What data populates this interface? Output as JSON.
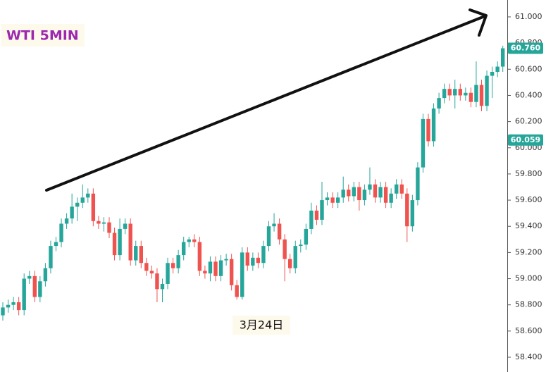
{
  "chart_data": {
    "type": "candlestick",
    "title": "WTI 5MIN",
    "annotation": "3月24日",
    "up_color": "#26a69a",
    "down_color": "#ef5350",
    "ylim": [
      58.287,
      61.129
    ],
    "yticks": [
      {
        "value": 58.4,
        "label": "58.400"
      },
      {
        "value": 58.6,
        "label": "58.600"
      },
      {
        "value": 58.8,
        "label": "58.800"
      },
      {
        "value": 59.0,
        "label": "59.000"
      },
      {
        "value": 59.2,
        "label": "59.200"
      },
      {
        "value": 59.4,
        "label": "59.400"
      },
      {
        "value": 59.6,
        "label": "59.600"
      },
      {
        "value": 59.8,
        "label": "59.800"
      },
      {
        "value": 60.0,
        "label": "60.000"
      },
      {
        "value": 60.2,
        "label": "60.200"
      },
      {
        "value": 60.4,
        "label": "60.400"
      },
      {
        "value": 60.6,
        "label": "60.600"
      },
      {
        "value": 60.8,
        "label": "60.800"
      },
      {
        "value": 61.0,
        "label": "61.000"
      }
    ],
    "price_labels": [
      {
        "value": 60.76,
        "label": "60.760",
        "color": "#26a69a"
      },
      {
        "value": 60.059,
        "label": "60.059",
        "color": "#26a69a"
      }
    ],
    "ohlc": [
      [
        58.72,
        58.82,
        58.68,
        58.78
      ],
      [
        58.78,
        58.84,
        58.74,
        58.8
      ],
      [
        58.8,
        58.86,
        58.76,
        58.82
      ],
      [
        58.82,
        58.86,
        58.72,
        58.76
      ],
      [
        58.76,
        59.04,
        58.72,
        59.0
      ],
      [
        59.0,
        59.06,
        58.96,
        59.02
      ],
      [
        59.02,
        59.06,
        58.82,
        58.86
      ],
      [
        58.86,
        59.02,
        58.82,
        58.98
      ],
      [
        58.98,
        59.12,
        58.94,
        59.08
      ],
      [
        59.08,
        59.29,
        59.04,
        59.25
      ],
      [
        59.25,
        59.32,
        59.21,
        59.28
      ],
      [
        59.28,
        59.46,
        59.24,
        59.42
      ],
      [
        59.42,
        59.5,
        59.38,
        59.46
      ],
      [
        59.46,
        59.65,
        59.42,
        59.55
      ],
      [
        59.55,
        59.62,
        59.44,
        59.58
      ],
      [
        59.58,
        59.72,
        59.54,
        59.62
      ],
      [
        59.62,
        59.69,
        59.58,
        59.65
      ],
      [
        59.65,
        59.69,
        59.4,
        59.44
      ],
      [
        59.44,
        59.48,
        59.38,
        59.42
      ],
      [
        59.42,
        59.47,
        59.36,
        59.43
      ],
      [
        59.43,
        59.47,
        59.31,
        59.35
      ],
      [
        59.35,
        59.39,
        59.14,
        59.18
      ],
      [
        59.18,
        59.46,
        59.14,
        59.38
      ],
      [
        59.38,
        59.46,
        59.34,
        59.42
      ],
      [
        59.42,
        59.46,
        59.1,
        59.14
      ],
      [
        59.14,
        59.29,
        59.1,
        59.25
      ],
      [
        59.25,
        59.29,
        59.08,
        59.12
      ],
      [
        59.12,
        59.16,
        59.02,
        59.06
      ],
      [
        59.06,
        59.1,
        59.0,
        59.04
      ],
      [
        59.04,
        59.08,
        58.82,
        58.92
      ],
      [
        58.92,
        59.0,
        58.82,
        58.96
      ],
      [
        58.96,
        59.16,
        58.92,
        59.12
      ],
      [
        59.12,
        59.16,
        59.04,
        59.08
      ],
      [
        59.08,
        59.22,
        59.04,
        59.18
      ],
      [
        59.18,
        59.32,
        59.14,
        59.28
      ],
      [
        59.28,
        59.32,
        59.24,
        59.3
      ],
      [
        59.3,
        59.34,
        59.24,
        59.28
      ],
      [
        59.28,
        59.32,
        59.02,
        59.06
      ],
      [
        59.06,
        59.1,
        59.0,
        59.04
      ],
      [
        59.04,
        59.17,
        58.98,
        59.13
      ],
      [
        59.13,
        59.17,
        58.98,
        59.02
      ],
      [
        59.02,
        59.18,
        58.98,
        59.14
      ],
      [
        59.14,
        59.19,
        59.1,
        59.15
      ],
      [
        59.15,
        59.19,
        58.91,
        58.95
      ],
      [
        58.95,
        58.99,
        58.84,
        58.86
      ],
      [
        58.86,
        59.24,
        58.84,
        59.2
      ],
      [
        59.2,
        59.24,
        59.06,
        59.1
      ],
      [
        59.1,
        59.2,
        59.06,
        59.16
      ],
      [
        59.16,
        59.2,
        59.08,
        59.12
      ],
      [
        59.12,
        59.29,
        59.08,
        59.25
      ],
      [
        59.25,
        59.44,
        59.21,
        59.4
      ],
      [
        59.4,
        59.5,
        59.36,
        59.42
      ],
      [
        59.42,
        59.46,
        59.26,
        59.3
      ],
      [
        59.3,
        59.34,
        58.98,
        59.15
      ],
      [
        59.15,
        59.19,
        59.04,
        59.08
      ],
      [
        59.08,
        59.29,
        59.04,
        59.25
      ],
      [
        59.25,
        59.3,
        59.2,
        59.26
      ],
      [
        59.26,
        59.42,
        59.22,
        59.38
      ],
      [
        59.38,
        59.58,
        59.34,
        59.52
      ],
      [
        59.52,
        59.56,
        59.41,
        59.45
      ],
      [
        59.45,
        59.74,
        59.41,
        59.6
      ],
      [
        59.6,
        59.66,
        59.56,
        59.62
      ],
      [
        59.62,
        59.66,
        59.54,
        59.58
      ],
      [
        59.58,
        59.66,
        59.54,
        59.62
      ],
      [
        59.62,
        59.78,
        59.58,
        59.68
      ],
      [
        59.68,
        59.72,
        59.59,
        59.63
      ],
      [
        59.63,
        59.74,
        59.59,
        59.7
      ],
      [
        59.7,
        59.74,
        59.52,
        59.6
      ],
      [
        59.6,
        59.72,
        59.56,
        59.68
      ],
      [
        59.68,
        59.85,
        59.64,
        59.72
      ],
      [
        59.72,
        59.76,
        59.58,
        59.62
      ],
      [
        59.62,
        59.74,
        59.58,
        59.7
      ],
      [
        59.7,
        59.74,
        59.54,
        59.58
      ],
      [
        59.58,
        59.69,
        59.54,
        59.65
      ],
      [
        59.65,
        59.76,
        59.61,
        59.72
      ],
      [
        59.72,
        59.76,
        59.61,
        59.65
      ],
      [
        59.65,
        59.69,
        59.28,
        59.4
      ],
      [
        59.4,
        59.64,
        59.36,
        59.6
      ],
      [
        59.6,
        59.89,
        59.56,
        59.85
      ],
      [
        59.85,
        60.26,
        59.81,
        60.22
      ],
      [
        60.22,
        60.26,
        60.01,
        60.05
      ],
      [
        60.05,
        60.34,
        60.01,
        60.3
      ],
      [
        60.3,
        60.42,
        60.26,
        60.38
      ],
      [
        60.38,
        60.49,
        60.34,
        60.45
      ],
      [
        60.45,
        60.49,
        60.36,
        60.4
      ],
      [
        60.4,
        60.52,
        60.3,
        60.45
      ],
      [
        60.45,
        60.49,
        60.36,
        60.4
      ],
      [
        60.4,
        60.46,
        60.36,
        60.42
      ],
      [
        60.42,
        60.46,
        60.31,
        60.35
      ],
      [
        60.35,
        60.66,
        60.31,
        60.48
      ],
      [
        60.48,
        60.52,
        60.28,
        60.32
      ],
      [
        60.32,
        60.59,
        60.28,
        60.55
      ],
      [
        60.55,
        60.62,
        60.38,
        60.58
      ],
      [
        60.58,
        60.66,
        60.54,
        60.62
      ],
      [
        60.62,
        60.78,
        60.58,
        60.76
      ]
    ]
  }
}
